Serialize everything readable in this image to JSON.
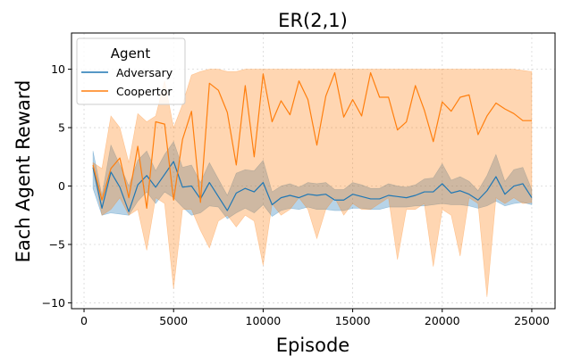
{
  "chart_data": {
    "type": "line",
    "title": "ER(2,1)",
    "xlabel": "Episode",
    "ylabel": "Each Agent Reward",
    "xlim": [
      -700,
      26300
    ],
    "ylim": [
      -10.5,
      13.1
    ],
    "xticks": [
      0,
      5000,
      10000,
      15000,
      20000,
      25000
    ],
    "xtick_labels": [
      "0",
      "5000",
      "10000",
      "15000",
      "20000",
      "25000"
    ],
    "yticks": [
      -10,
      -5,
      0,
      5,
      10
    ],
    "ytick_labels": [
      "−10",
      "−5",
      "0",
      "5",
      "10"
    ],
    "grid": true,
    "legend": {
      "title": "Agent",
      "placement": "upper-left"
    },
    "x": [
      500,
      1000,
      1500,
      2000,
      2500,
      3000,
      3500,
      4000,
      4500,
      5000,
      5500,
      6000,
      6500,
      7000,
      7500,
      8000,
      8500,
      9000,
      9500,
      10000,
      10500,
      11000,
      11500,
      12000,
      12500,
      13000,
      13500,
      14000,
      14500,
      15000,
      15500,
      16000,
      16500,
      17000,
      17500,
      18000,
      18500,
      19000,
      19500,
      20000,
      20500,
      21000,
      21500,
      22000,
      22500,
      23000,
      23500,
      24000,
      24500,
      25000
    ],
    "series": [
      {
        "name": "Adversary",
        "color": "#1f77b4",
        "mean": [
          1.6,
          -1.9,
          1.2,
          -0.1,
          -2.2,
          0.1,
          0.9,
          -0.1,
          1.0,
          2.1,
          -0.1,
          0.0,
          -1.1,
          0.3,
          -0.9,
          -2.1,
          -0.6,
          -0.2,
          -0.5,
          0.3,
          -1.6,
          -1.0,
          -0.8,
          -1.0,
          -0.7,
          -0.8,
          -0.7,
          -1.2,
          -1.2,
          -0.7,
          -0.9,
          -1.1,
          -1.1,
          -0.8,
          -0.9,
          -1.0,
          -0.8,
          -0.5,
          -0.5,
          0.2,
          -0.6,
          -0.4,
          -0.7,
          -1.2,
          -0.4,
          0.8,
          -0.7,
          0.0,
          0.2,
          -1.0
        ],
        "lower": [
          -0.2,
          -2.5,
          -2.3,
          -2.4,
          -2.5,
          -1.3,
          -0.5,
          -1.5,
          -0.5,
          -1.0,
          -1.8,
          -2.5,
          -2.3,
          -1.7,
          -1.8,
          -2.8,
          -2.3,
          -1.9,
          -2.3,
          -1.6,
          -2.6,
          -2.1,
          -1.9,
          -2.0,
          -1.8,
          -2.0,
          -2.0,
          -2.1,
          -2.1,
          -1.9,
          -1.9,
          -2.0,
          -2.0,
          -1.8,
          -1.8,
          -1.8,
          -1.7,
          -1.7,
          -1.6,
          -1.5,
          -1.6,
          -1.6,
          -1.7,
          -1.9,
          -1.7,
          -1.3,
          -1.7,
          -1.5,
          -1.4,
          -1.6
        ],
        "upper": [
          3.0,
          -0.8,
          3.5,
          1.8,
          0.0,
          2.2,
          3.0,
          1.3,
          2.7,
          3.8,
          1.6,
          1.8,
          0.3,
          2.0,
          0.6,
          -0.8,
          1.1,
          1.4,
          1.3,
          2.2,
          -0.5,
          0.0,
          0.2,
          -0.1,
          0.3,
          0.2,
          0.3,
          -0.3,
          -0.3,
          0.3,
          0.1,
          -0.2,
          -0.2,
          0.2,
          0.0,
          -0.1,
          0.1,
          0.6,
          0.7,
          1.9,
          0.5,
          0.8,
          0.4,
          -0.4,
          0.9,
          2.7,
          0.4,
          1.4,
          1.6,
          -0.3
        ]
      },
      {
        "name": "Coopertor",
        "color": "#ff7f0e",
        "mean": [
          1.8,
          -1.2,
          1.5,
          2.4,
          -1.0,
          3.4,
          -1.9,
          5.5,
          5.3,
          -1.2,
          4.0,
          6.4,
          -1.4,
          8.8,
          8.2,
          6.3,
          1.8,
          8.6,
          2.5,
          9.6,
          5.5,
          7.3,
          6.1,
          9.0,
          7.4,
          3.5,
          7.7,
          9.7,
          5.9,
          7.4,
          6.0,
          9.7,
          7.6,
          7.6,
          4.8,
          5.5,
          8.6,
          6.5,
          3.8,
          7.2,
          6.4,
          7.6,
          7.8,
          4.4,
          6.0,
          7.1,
          6.6,
          6.2,
          5.6,
          5.6
        ],
        "lower": [
          1.5,
          -2.5,
          -2.0,
          -1.0,
          -2.5,
          -2.0,
          -5.5,
          -1.0,
          -1.5,
          -8.8,
          -2.0,
          -2.0,
          -3.8,
          -5.3,
          -3.0,
          -2.5,
          -3.5,
          -2.5,
          -3.0,
          -6.8,
          -1.5,
          -2.5,
          -2.0,
          -1.0,
          -2.0,
          -4.5,
          -2.0,
          -1.0,
          -2.5,
          -1.5,
          -2.0,
          -2.0,
          -1.5,
          -1.0,
          -6.3,
          -2.0,
          -2.0,
          -1.5,
          -6.9,
          -2.0,
          -2.5,
          -6.0,
          -1.0,
          -1.5,
          -9.5,
          -1.0,
          -1.5,
          -1.0,
          -1.5,
          -1.4
        ],
        "upper": [
          2.0,
          1.5,
          6.0,
          5.0,
          2.0,
          6.2,
          5.5,
          6.0,
          9.0,
          5.0,
          7.0,
          9.5,
          9.8,
          10.0,
          10.0,
          9.8,
          9.8,
          10.0,
          10.0,
          10.0,
          10.0,
          10.0,
          10.0,
          10.0,
          10.0,
          10.0,
          10.0,
          10.0,
          10.0,
          10.0,
          10.0,
          10.0,
          10.0,
          10.0,
          10.0,
          10.0,
          10.0,
          10.0,
          10.0,
          10.0,
          10.0,
          10.0,
          10.0,
          10.0,
          10.0,
          10.0,
          10.0,
          10.0,
          9.9,
          9.8
        ]
      }
    ]
  }
}
